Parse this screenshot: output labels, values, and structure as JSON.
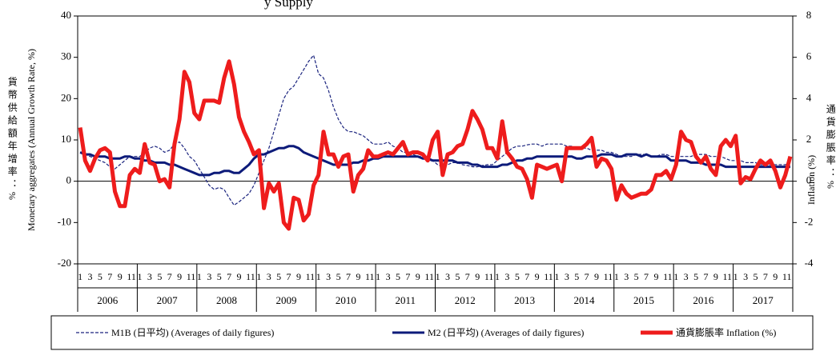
{
  "chart_data": {
    "type": "line",
    "title": "y Supply",
    "y_label": "Monetary aggregates (Annual Growth Rate, %)",
    "y_label_zh": "貨幣供給額年增率：%",
    "y2_label": "Inflation (%)",
    "y2_label_zh": "通貨膨脹率：%",
    "categories": [
      "1",
      null,
      "3",
      null,
      "5",
      null,
      "7",
      null,
      "9",
      null,
      "11",
      null,
      "1",
      null,
      "3",
      null,
      "5",
      null,
      "7",
      null,
      "9",
      null,
      "11",
      null,
      "1",
      null,
      "3",
      null,
      "5",
      null,
      "7",
      null,
      "9",
      null,
      "11",
      null,
      "1",
      null,
      "3",
      null,
      "5",
      null,
      "7",
      null,
      "9",
      null,
      "11",
      null,
      "1",
      null,
      "3",
      null,
      "5",
      null,
      "7",
      null,
      "9",
      null,
      "11",
      null,
      "1",
      null,
      "3",
      null,
      "5",
      null,
      "7",
      null,
      "9",
      null,
      "11",
      null,
      "1",
      null,
      "3",
      null,
      "5",
      null,
      "7",
      null,
      "9",
      null,
      "11",
      null,
      "1",
      null,
      "3",
      null,
      "5",
      null,
      "7",
      null,
      "9",
      null,
      "11",
      null,
      "1",
      null,
      "3",
      null,
      "5",
      null,
      "7",
      null,
      "9",
      null,
      "11",
      null,
      "1",
      null,
      "3",
      null,
      "5",
      null,
      "7",
      null,
      "9",
      null,
      "11",
      null,
      "1",
      null,
      "3",
      null,
      "5",
      null,
      "7",
      null,
      "9",
      null,
      "11",
      null,
      "1",
      null,
      "3",
      null,
      "5",
      null,
      "7",
      null,
      "9",
      null,
      "11",
      null
    ],
    "years": [
      "2006",
      "2007",
      "2008",
      "2009",
      "2010",
      "2011",
      "2012",
      "2013",
      "2014",
      "2015",
      "2016",
      "2017"
    ],
    "ylim": [
      -20,
      40
    ],
    "yticks": [
      -20,
      -10,
      0,
      10,
      20,
      30,
      40
    ],
    "y2lim": [
      -4,
      8
    ],
    "y2ticks": [
      -4,
      -2,
      0,
      2,
      4,
      6,
      8
    ],
    "series": [
      {
        "name": "M1B (日平均) (Averages of daily figures)",
        "color": "#1a237e",
        "line_style": "dashed",
        "values": [
          7,
          6.5,
          6,
          5.5,
          5,
          4.5,
          3.5,
          3,
          4,
          5,
          6,
          6,
          6,
          7,
          8,
          8.5,
          8,
          7,
          7.5,
          9,
          9.5,
          8,
          6,
          5,
          3,
          1,
          -1,
          -2,
          -1.5,
          -2,
          -4,
          -5.8,
          -5,
          -4,
          -3,
          -1,
          2,
          5,
          8,
          12,
          16,
          20,
          22,
          23,
          25,
          27,
          29,
          30.5,
          26,
          25,
          22,
          18,
          15,
          13,
          12,
          12,
          11.5,
          11,
          10,
          9,
          9,
          9,
          9.5,
          8.5,
          8,
          7,
          7,
          6.5,
          6,
          6,
          5.5,
          5,
          4,
          3.5,
          4,
          4.5,
          4.5,
          4,
          3.8,
          3.5,
          3.5,
          3.8,
          4,
          4,
          5,
          6,
          7,
          8,
          8.5,
          8.5,
          8.8,
          9,
          9,
          8.5,
          9,
          9,
          9,
          9,
          8.5,
          8.5,
          8,
          8,
          8,
          7.5,
          7.5,
          7.5,
          7,
          7,
          6.5,
          6,
          6,
          6,
          6.5,
          6.5,
          6.5,
          6,
          6,
          6.5,
          6.5,
          6,
          6,
          6,
          6,
          6,
          6.5,
          6.5,
          6.5,
          6,
          6,
          6,
          5.5,
          5,
          5,
          5,
          4.5,
          4.5,
          4.5,
          4,
          4,
          4,
          4,
          4,
          4,
          4.5
        ]
      },
      {
        "name": "M2 (日平均) (Averages of daily figures)",
        "color": "#0d1b7a",
        "line_style": "solid",
        "values": [
          7,
          6.5,
          6.5,
          6,
          6,
          6,
          5.5,
          5.5,
          5.5,
          6,
          6,
          5.5,
          5.5,
          5,
          5,
          4.5,
          4.5,
          4.5,
          4,
          4,
          3.5,
          3,
          2.5,
          2,
          1.5,
          1.5,
          1.5,
          2,
          2,
          2.5,
          2.5,
          2,
          2,
          3,
          4,
          5.5,
          6.5,
          6.5,
          7,
          7.5,
          8,
          8,
          8.5,
          8.5,
          8,
          7,
          6.5,
          6,
          5.5,
          5,
          4.5,
          4,
          4,
          4,
          4,
          4.5,
          4.5,
          5,
          5,
          5.5,
          5.5,
          6,
          6,
          6,
          6,
          6,
          6,
          6,
          6,
          5.5,
          5.5,
          5,
          5,
          5,
          5,
          5,
          4.5,
          4.5,
          4.5,
          4,
          4,
          3.5,
          3.5,
          3.5,
          3.5,
          4,
          4,
          4.5,
          5,
          5,
          5.5,
          5.5,
          6,
          6,
          6,
          6,
          6,
          6,
          6,
          6,
          5.5,
          5.5,
          6,
          6,
          6,
          6.5,
          6.5,
          6.5,
          6,
          6,
          6.5,
          6.5,
          6.5,
          6,
          6.5,
          6,
          6,
          6,
          6,
          5,
          5,
          5,
          5,
          4.5,
          4.5,
          4.5,
          4,
          4,
          4,
          4,
          3.5,
          3.5,
          3.5,
          3.5,
          3.5,
          3.5,
          3.5,
          3.5,
          3.5,
          3.5,
          3.5,
          3.5,
          3.5,
          3.5
        ]
      },
      {
        "name": "通貨膨脹率 Inflation (%)",
        "color": "#ee1c1c",
        "line_style": "thick",
        "axis": "y2",
        "values": [
          2.6,
          1,
          0.5,
          1.1,
          1.5,
          1.6,
          1.4,
          -0.5,
          -1.2,
          -1.2,
          0.3,
          0.6,
          0.4,
          1.8,
          0.9,
          0.8,
          0,
          0.1,
          -0.3,
          1.8,
          3,
          5.3,
          4.8,
          3.3,
          3,
          3.9,
          3.9,
          3.9,
          3.8,
          5,
          5.8,
          4.7,
          3.1,
          2.4,
          1.9,
          1.3,
          1.5,
          -1.3,
          -0.1,
          -0.5,
          -0.1,
          -2,
          -2.3,
          -0.8,
          -0.9,
          -1.9,
          -1.6,
          -0.2,
          0.3,
          2.4,
          1.3,
          1.3,
          0.7,
          1.2,
          1.3,
          -0.5,
          0.3,
          0.6,
          1.5,
          1.2,
          1.2,
          1.3,
          1.4,
          1.3,
          1.6,
          1.9,
          1.3,
          1.4,
          1.4,
          1.3,
          1,
          2,
          2.4,
          0.3,
          1.3,
          1.4,
          1.7,
          1.8,
          2.5,
          3.4,
          3,
          2.5,
          1.6,
          1.6,
          1.1,
          2.9,
          1.4,
          1.1,
          0.7,
          0.6,
          0.1,
          -0.8,
          0.8,
          0.7,
          0.6,
          0.7,
          0.8,
          0,
          1.6,
          1.6,
          1.6,
          1.6,
          1.8,
          2.1,
          0.7,
          1.1,
          1,
          0.6,
          -0.9,
          -0.2,
          -0.6,
          -0.8,
          -0.7,
          -0.6,
          -0.6,
          -0.4,
          0.3,
          0.3,
          0.5,
          0.1,
          0.8,
          2.4,
          2,
          1.9,
          1.2,
          0.9,
          1.2,
          0.6,
          0.3,
          1.7,
          2,
          1.7,
          2.2,
          -0.1,
          0.2,
          0.1,
          0.6,
          1,
          0.8,
          1,
          0.5,
          -0.3,
          0.3,
          1.2
        ]
      }
    ]
  }
}
